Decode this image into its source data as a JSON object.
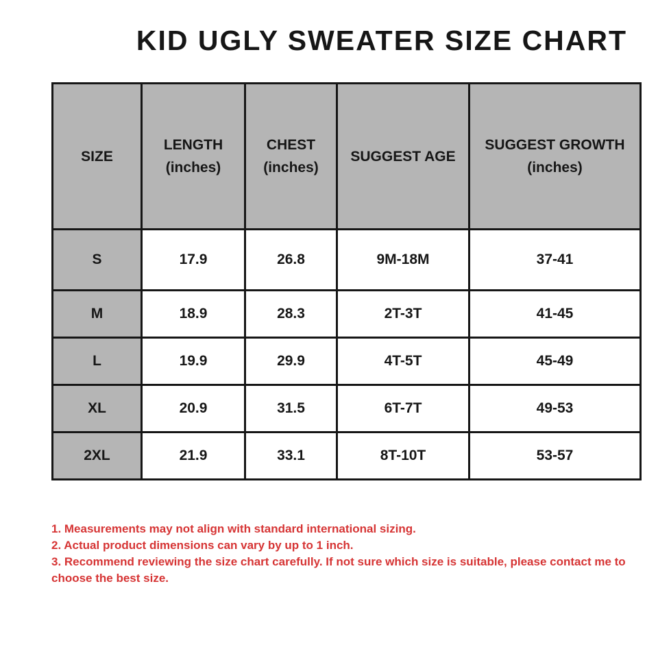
{
  "title": "KID UGLY SWEATER SIZE CHART",
  "table": {
    "headers": [
      {
        "line1": "SIZE",
        "line2": ""
      },
      {
        "line1": "LENGTH",
        "line2": "(inches)"
      },
      {
        "line1": "CHEST",
        "line2": "(inches)"
      },
      {
        "line1": "SUGGEST AGE",
        "line2": ""
      },
      {
        "line1": "SUGGEST GROWTH",
        "line2": "(inches)"
      }
    ],
    "rows": [
      {
        "size": "S",
        "length": "17.9",
        "chest": "26.8",
        "age": "9M-18M",
        "growth": "37-41"
      },
      {
        "size": "M",
        "length": "18.9",
        "chest": "28.3",
        "age": "2T-3T",
        "growth": "41-45"
      },
      {
        "size": "L",
        "length": "19.9",
        "chest": "29.9",
        "age": "4T-5T",
        "growth": "45-49"
      },
      {
        "size": "XL",
        "length": "20.9",
        "chest": "31.5",
        "age": "6T-7T",
        "growth": "49-53"
      },
      {
        "size": "2XL",
        "length": "21.9",
        "chest": "33.1",
        "age": "8T-10T",
        "growth": "53-57"
      }
    ]
  },
  "notes": [
    "1. Measurements may not align with standard international sizing.",
    "2. Actual product dimensions can vary by up to 1 inch.",
    "3. Recommend reviewing the size chart carefully. If not sure which size is suitable, please contact me to choose the best size."
  ],
  "colors": {
    "header_bg": "#b5b5b5",
    "border": "#161616",
    "text": "#161616",
    "note_red": "#d63434",
    "background": "#ffffff"
  },
  "chart_data": {
    "type": "table",
    "title": "KID UGLY SWEATER SIZE CHART",
    "columns": [
      "SIZE",
      "LENGTH (inches)",
      "CHEST (inches)",
      "SUGGEST AGE",
      "SUGGEST GROWTH (inches)"
    ],
    "rows": [
      [
        "S",
        17.9,
        26.8,
        "9M-18M",
        "37-41"
      ],
      [
        "M",
        18.9,
        28.3,
        "2T-3T",
        "41-45"
      ],
      [
        "L",
        19.9,
        29.9,
        "4T-5T",
        "45-49"
      ],
      [
        "XL",
        20.9,
        31.5,
        "6T-7T",
        "49-53"
      ],
      [
        "2XL",
        21.9,
        33.1,
        "8T-10T",
        "53-57"
      ]
    ]
  }
}
